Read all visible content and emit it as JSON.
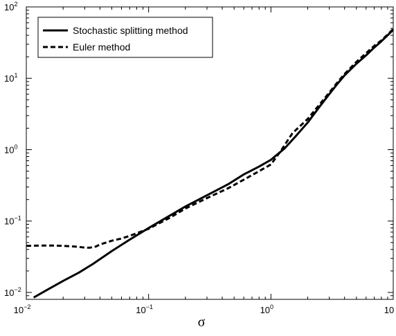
{
  "chart_data": {
    "type": "line",
    "title": "",
    "xlabel": "σ",
    "ylabel": "",
    "xscale": "log",
    "yscale": "log",
    "xlim": [
      0.01,
      10
    ],
    "ylim": [
      0.008,
      100
    ],
    "x_ticks": [
      {
        "value": 0.01,
        "base": "10",
        "exp": "−2"
      },
      {
        "value": 0.1,
        "base": "10",
        "exp": "−1"
      },
      {
        "value": 1,
        "base": "10",
        "exp": "0"
      },
      {
        "value": 10,
        "base": "10",
        "exp": ""
      }
    ],
    "y_ticks": [
      {
        "value": 0.01,
        "base": "10",
        "exp": "−2"
      },
      {
        "value": 0.1,
        "base": "10",
        "exp": "−1"
      },
      {
        "value": 1,
        "base": "10",
        "exp": "0"
      },
      {
        "value": 10,
        "base": "10",
        "exp": "1"
      },
      {
        "value": 100,
        "base": "10",
        "exp": "2"
      }
    ],
    "grid": false,
    "legend_position": "top-left",
    "series": [
      {
        "name": "Stochastic splitting method",
        "style": "solid",
        "color": "#000000",
        "x": [
          0.0115,
          0.015,
          0.02,
          0.027,
          0.035,
          0.05,
          0.07,
          0.1,
          0.15,
          0.2,
          0.3,
          0.45,
          0.6,
          0.8,
          1.0,
          1.3,
          1.6,
          2.0,
          2.5,
          3.0,
          3.5,
          4.0,
          5.0,
          6.0,
          7.0,
          8.0,
          9.0,
          10.0
        ],
        "y": [
          0.0085,
          0.011,
          0.0145,
          0.019,
          0.025,
          0.038,
          0.055,
          0.08,
          0.12,
          0.16,
          0.23,
          0.33,
          0.45,
          0.58,
          0.72,
          1.05,
          1.55,
          2.4,
          4.0,
          6.0,
          8.4,
          11.0,
          16.0,
          21.0,
          27.0,
          33.0,
          40.0,
          48.0
        ]
      },
      {
        "name": "Euler method",
        "style": "dashed",
        "color": "#000000",
        "x": [
          0.01,
          0.015,
          0.02,
          0.025,
          0.03,
          0.033,
          0.037,
          0.04,
          0.045,
          0.05,
          0.06,
          0.07,
          0.1,
          0.15,
          0.2,
          0.3,
          0.45,
          0.6,
          0.8,
          1.0,
          1.2,
          1.5,
          2.0,
          2.5,
          3.0,
          3.5,
          4.0,
          5.0,
          6.0,
          7.0,
          8.0,
          9.0,
          10.0
        ],
        "y": [
          0.045,
          0.0455,
          0.045,
          0.044,
          0.0425,
          0.0423,
          0.044,
          0.047,
          0.05,
          0.053,
          0.057,
          0.062,
          0.078,
          0.112,
          0.15,
          0.21,
          0.29,
          0.38,
          0.5,
          0.62,
          0.95,
          1.7,
          2.7,
          4.3,
          6.3,
          8.8,
          11.5,
          17.0,
          22.5,
          28.5,
          34.0,
          41.0,
          49.0
        ]
      }
    ]
  }
}
